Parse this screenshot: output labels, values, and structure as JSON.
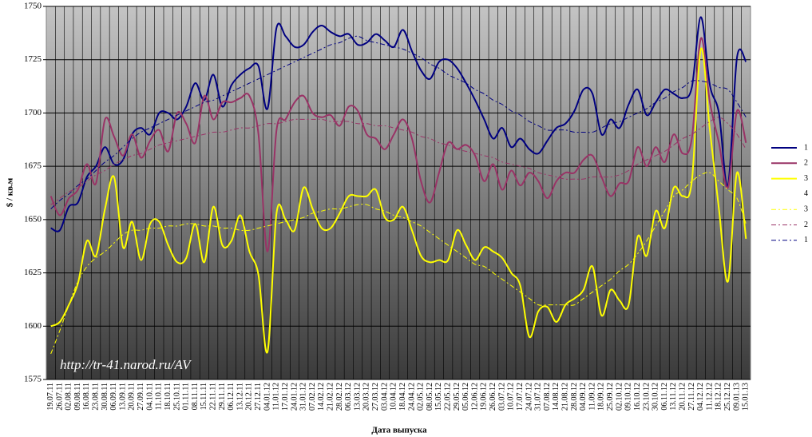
{
  "chart_data": {
    "type": "line",
    "watermark": "http://tr-41.narod.ru/AV",
    "x_label": "Дата выпуска",
    "y_label": "$ / кв.м",
    "categories": [
      "19.07.11",
      "26.07.11",
      "02.08.11",
      "09.08.11",
      "16.08.11",
      "23.08.11",
      "30.08.11",
      "06.09.11",
      "13.09.11",
      "20.09.11",
      "27.09.11",
      "04.10.11",
      "11.10.11",
      "18.10.11",
      "25.10.11",
      "01.11.11",
      "08.11.11",
      "15.11.11",
      "22.11.11",
      "29.11.11",
      "06.12.11",
      "13.12.11",
      "20.12.11",
      "27.12.11",
      "04.01.12",
      "11.01.12",
      "17.01.12",
      "24.01.12",
      "31.01.12",
      "07.02.12",
      "14.02.12",
      "21.02.12",
      "28.02.12",
      "06.03.12",
      "13.03.12",
      "20.03.12",
      "27.03.12",
      "03.04.12",
      "10.04.12",
      "18.04.12",
      "24.04.12",
      "02.05.12",
      "08.05.12",
      "15.05.12",
      "22.05.12",
      "29.05.12",
      "05.06.12",
      "12.06.12",
      "19.06.12",
      "26.06.12",
      "03.07.12",
      "10.07.12",
      "17.07.12",
      "24.07.12",
      "31.07.12",
      "07.08.12",
      "14.08.12",
      "21.08.12",
      "28.08.12",
      "04.09.12",
      "11.09.12",
      "18.09.12",
      "25.09.12",
      "02.10.12",
      "09.10.12",
      "16.10.12",
      "23.10.12",
      "30.10.12",
      "06.11.12",
      "13.11.12",
      "20.11.12",
      "27.11.12",
      "04.12.12",
      "11.12.12",
      "18.12.12",
      "25.12.12",
      "09.01.13",
      "15.01.13"
    ],
    "ylim": [
      1575,
      1750
    ],
    "yticks": [
      1575,
      1600,
      1625,
      1650,
      1675,
      1700,
      1725,
      1750
    ],
    "grid": true,
    "legend": "right",
    "series": [
      {
        "name": "1",
        "color": "#000080",
        "width": 2,
        "dash": false,
        "values": [
          1646,
          1645,
          1656,
          1658,
          1670,
          1675,
          1684,
          1676,
          1678,
          1690,
          1693,
          1690,
          1700,
          1700,
          1697,
          1703,
          1714,
          1706,
          1718,
          1703,
          1713,
          1718,
          1721,
          1722,
          1702,
          1740,
          1736,
          1731,
          1732,
          1738,
          1741,
          1738,
          1736,
          1737,
          1732,
          1733,
          1737,
          1734,
          1731,
          1739,
          1729,
          1720,
          1716,
          1724,
          1725,
          1721,
          1714,
          1706,
          1697,
          1688,
          1693,
          1684,
          1688,
          1683,
          1681,
          1687,
          1693,
          1695,
          1701,
          1711,
          1709,
          1690,
          1697,
          1693,
          1704,
          1711,
          1699,
          1705,
          1711,
          1709,
          1707,
          1712,
          1745,
          1713,
          1700,
          1666,
          1726,
          1724
        ]
      },
      {
        "name": "2",
        "color": "#993366",
        "width": 2,
        "dash": false,
        "values": [
          1661,
          1652,
          1660,
          1664,
          1676,
          1667,
          1697,
          1689,
          1680,
          1690,
          1679,
          1687,
          1692,
          1682,
          1700,
          1695,
          1686,
          1708,
          1697,
          1705,
          1705,
          1707,
          1708,
          1690,
          1635,
          1692,
          1697,
          1705,
          1708,
          1700,
          1698,
          1699,
          1694,
          1703,
          1701,
          1690,
          1688,
          1683,
          1690,
          1697,
          1688,
          1668,
          1658,
          1672,
          1686,
          1683,
          1685,
          1680,
          1668,
          1676,
          1664,
          1673,
          1666,
          1672,
          1668,
          1660,
          1668,
          1672,
          1672,
          1678,
          1680,
          1670,
          1661,
          1667,
          1668,
          1684,
          1675,
          1684,
          1677,
          1690,
          1681,
          1688,
          1735,
          1705,
          1686,
          1665,
          1701,
          1686
        ]
      },
      {
        "name": "3",
        "color": "#ffff00",
        "width": 2,
        "dash": false,
        "values": [
          1600,
          1602,
          1610,
          1620,
          1640,
          1633,
          1655,
          1670,
          1637,
          1649,
          1631,
          1648,
          1649,
          1638,
          1630,
          1632,
          1648,
          1630,
          1656,
          1638,
          1640,
          1652,
          1635,
          1624,
          1588,
          1653,
          1650,
          1645,
          1665,
          1655,
          1646,
          1646,
          1653,
          1661,
          1661,
          1661,
          1664,
          1651,
          1650,
          1656,
          1645,
          1633,
          1630,
          1631,
          1631,
          1645,
          1638,
          1631,
          1637,
          1635,
          1632,
          1625,
          1619,
          1595,
          1607,
          1609,
          1602,
          1610,
          1613,
          1617,
          1628,
          1605,
          1617,
          1612,
          1610,
          1642,
          1633,
          1654,
          1646,
          1665,
          1661,
          1668,
          1730,
          1692,
          1655,
          1621,
          1672,
          1641
        ]
      },
      {
        "name": "4",
        "color": "#ffffff",
        "width": 1,
        "dash": false,
        "values": [
          null,
          null,
          null,
          null,
          null,
          null,
          null,
          null,
          null,
          null,
          null,
          null,
          null,
          null,
          null,
          null,
          null,
          null,
          null,
          null,
          null,
          null,
          null,
          null,
          null,
          null,
          null,
          null,
          null,
          null,
          null,
          null,
          null,
          null,
          null,
          null,
          null,
          null,
          null,
          null,
          null,
          null,
          null,
          null,
          null,
          null,
          null,
          null,
          null,
          null,
          null,
          null,
          null,
          null,
          null,
          null,
          null,
          null,
          null,
          null,
          null,
          null,
          null,
          null,
          null,
          null,
          null,
          null,
          null,
          null,
          null,
          null,
          null,
          null,
          null,
          null,
          null,
          null
        ]
      },
      {
        "name": "3",
        "color": "#ffff00",
        "width": 1,
        "dash": true,
        "values": [
          1587,
          1598,
          1610,
          1621,
          1628,
          1632,
          1635,
          1639,
          1643,
          1645,
          1645,
          1646,
          1646,
          1647,
          1647,
          1648,
          1648,
          1647,
          1647,
          1646,
          1646,
          1645,
          1645,
          1646,
          1647,
          1648,
          1649,
          1650,
          1651,
          1653,
          1654,
          1655,
          1655,
          1656,
          1657,
          1657,
          1655,
          1654,
          1652,
          1651,
          1649,
          1647,
          1644,
          1641,
          1638,
          1635,
          1632,
          1629,
          1628,
          1625,
          1622,
          1619,
          1616,
          1613,
          1610,
          1610,
          1610,
          1610,
          1610,
          1613,
          1616,
          1619,
          1622,
          1626,
          1629,
          1634,
          1640,
          1647,
          1654,
          1661,
          1664,
          1668,
          1671,
          1672,
          1668,
          1664,
          1660,
          1648
        ]
      },
      {
        "name": "2",
        "color": "#993366",
        "width": 1,
        "dash": true,
        "values": [
          1657,
          1660,
          1663,
          1665,
          1668,
          1671,
          1673,
          1676,
          1678,
          1680,
          1681,
          1683,
          1685,
          1686,
          1687,
          1688,
          1689,
          1690,
          1691,
          1691,
          1692,
          1693,
          1693,
          1694,
          1695,
          1695,
          1696,
          1697,
          1697,
          1697,
          1697,
          1696,
          1696,
          1696,
          1695,
          1695,
          1694,
          1694,
          1693,
          1692,
          1691,
          1689,
          1688,
          1686,
          1685,
          1683,
          1682,
          1681,
          1680,
          1679,
          1677,
          1676,
          1675,
          1674,
          1672,
          1671,
          1670,
          1669,
          1669,
          1669,
          1670,
          1670,
          1670,
          1671,
          1673,
          1676,
          1678,
          1680,
          1682,
          1685,
          1688,
          1690,
          1693,
          1696,
          1698,
          1695,
          1690,
          1683
        ]
      },
      {
        "name": "1",
        "color": "#000080",
        "width": 1,
        "dash": true,
        "values": [
          1655,
          1659,
          1662,
          1666,
          1669,
          1673,
          1677,
          1680,
          1684,
          1688,
          1691,
          1693,
          1695,
          1697,
          1699,
          1701,
          1703,
          1705,
          1706,
          1708,
          1710,
          1712,
          1714,
          1716,
          1718,
          1720,
          1722,
          1724,
          1726,
          1728,
          1730,
          1732,
          1733,
          1735,
          1736,
          1734,
          1733,
          1732,
          1731,
          1730,
          1728,
          1726,
          1723,
          1721,
          1718,
          1716,
          1714,
          1711,
          1709,
          1706,
          1704,
          1701,
          1699,
          1696,
          1694,
          1692,
          1692,
          1692,
          1691,
          1691,
          1691,
          1693,
          1695,
          1696,
          1698,
          1700,
          1702,
          1705,
          1707,
          1710,
          1712,
          1715,
          1715,
          1714,
          1712,
          1711,
          1705,
          1698
        ]
      }
    ]
  }
}
